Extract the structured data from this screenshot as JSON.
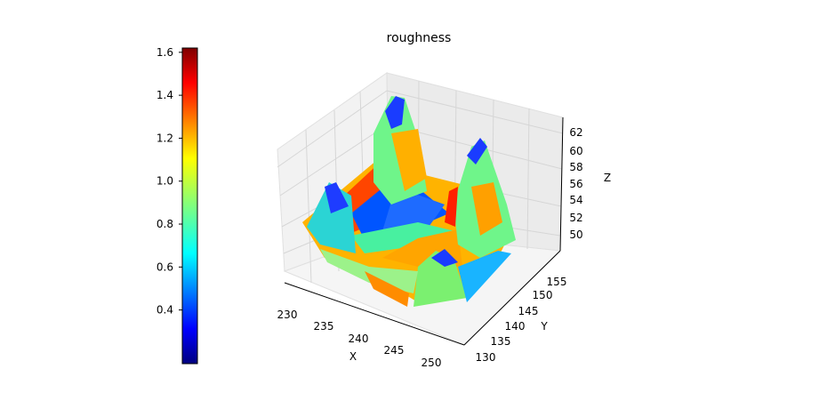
{
  "chart_data": {
    "type": "surface3d",
    "title": "roughness",
    "xlabel": "X",
    "ylabel": "Y",
    "zlabel": "Z",
    "x_ticks": [
      "230",
      "235",
      "240",
      "245",
      "250"
    ],
    "y_ticks": [
      "130",
      "135",
      "140",
      "145",
      "150",
      "155"
    ],
    "z_ticks": [
      "50",
      "52",
      "54",
      "56",
      "58",
      "60",
      "62"
    ],
    "colorbar": {
      "colormap": "jet",
      "range": [
        0.15,
        1.62
      ],
      "ticks": [
        "0.4",
        "0.6",
        "0.8",
        "1.0",
        "1.2",
        "1.4",
        "1.6"
      ],
      "tick_values": [
        0.4,
        0.6,
        0.8,
        1.0,
        1.2,
        1.4,
        1.6
      ]
    }
  }
}
